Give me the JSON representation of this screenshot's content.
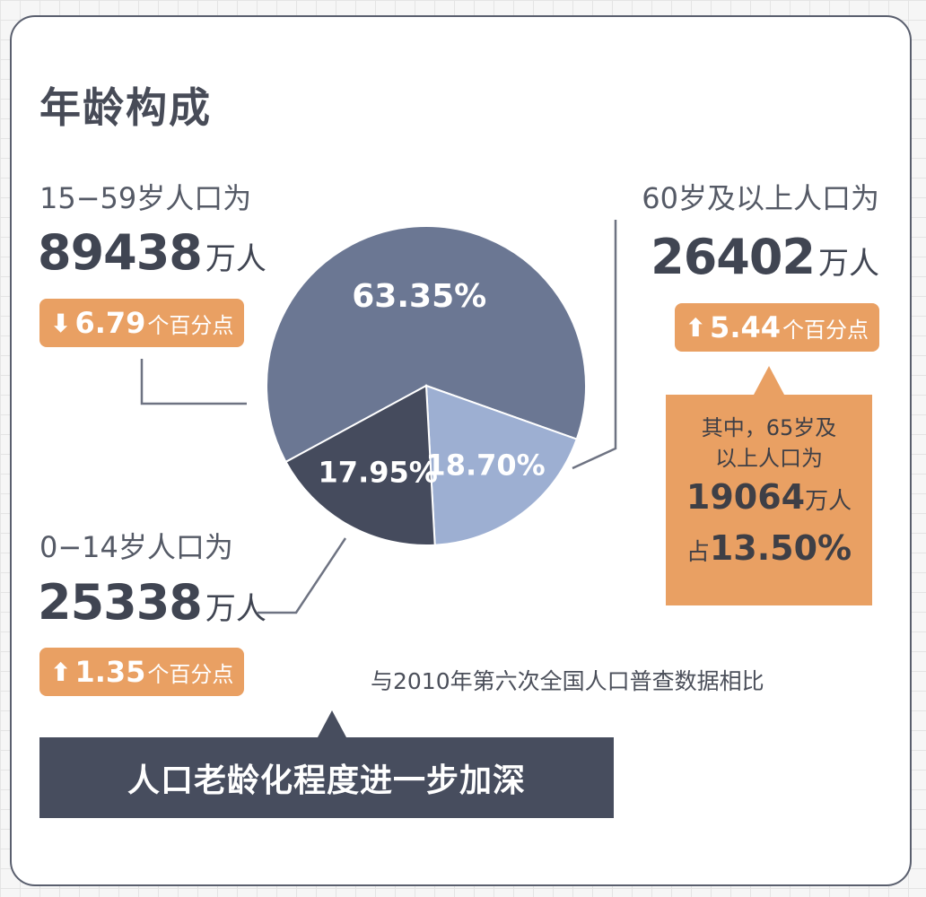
{
  "title": "年龄构成",
  "chart_data": {
    "type": "pie",
    "title": "年龄构成",
    "slices": [
      {
        "name": "15-59岁",
        "value": 63.35,
        "label": "63.35%",
        "color": "#6b7793"
      },
      {
        "name": "60岁及以上",
        "value": 18.7,
        "label": "18.70%",
        "color": "#9dafd2"
      },
      {
        "name": "0-14岁",
        "value": 17.95,
        "label": "17.95%",
        "color": "#454b5d"
      }
    ]
  },
  "groups": {
    "age_15_59": {
      "label": "15−59岁人口为",
      "number": "89438",
      "unit": "万人",
      "change_arrow": "⬇",
      "change_value": "6.79",
      "change_suffix": "个百分点"
    },
    "age_60_plus": {
      "label": "60岁及以上人口为",
      "number": "26402",
      "unit": "万人",
      "change_arrow": "⬆",
      "change_value": "5.44",
      "change_suffix": "个百分点"
    },
    "age_0_14": {
      "label": "0−14岁人口为",
      "number": "25338",
      "unit": "万人",
      "change_arrow": "⬆",
      "change_value": "1.35",
      "change_suffix": "个百分点"
    }
  },
  "callout": {
    "line1": "其中，65岁及",
    "line2": "以上人口为",
    "number": "19064",
    "unit": "万人",
    "prefix": "占",
    "percent": "13.50%"
  },
  "footnote": "与2010年第六次全国人口普查数据相比",
  "banner": "人口老龄化程度进一步加深",
  "colors": {
    "accent": "#e9a063",
    "dark": "#474d5e",
    "text": "#404552"
  }
}
